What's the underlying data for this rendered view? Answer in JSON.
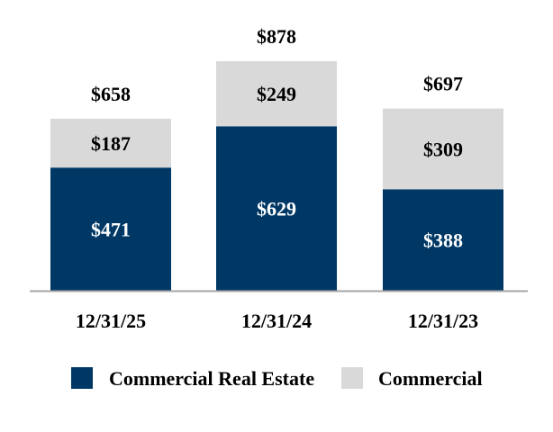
{
  "chart_data": {
    "type": "bar",
    "stacked": true,
    "categories": [
      "12/31/25",
      "12/31/24",
      "12/31/23"
    ],
    "series": [
      {
        "name": "Commercial Real Estate",
        "values": [
          471,
          629,
          388
        ],
        "labels": [
          "$471",
          "$629",
          "$388"
        ],
        "color": "#003865",
        "label_color": "#ffffff"
      },
      {
        "name": "Commercial",
        "values": [
          187,
          249,
          309
        ],
        "labels": [
          "$187",
          "$249",
          "$309"
        ],
        "color": "#d9d9d9",
        "label_color": "#000000"
      }
    ],
    "totals": [
      658,
      878,
      697
    ],
    "total_labels": [
      "$658",
      "$878",
      "$697"
    ],
    "grid": false,
    "legend_position": "bottom",
    "axis_color": "#a6a6a6"
  }
}
